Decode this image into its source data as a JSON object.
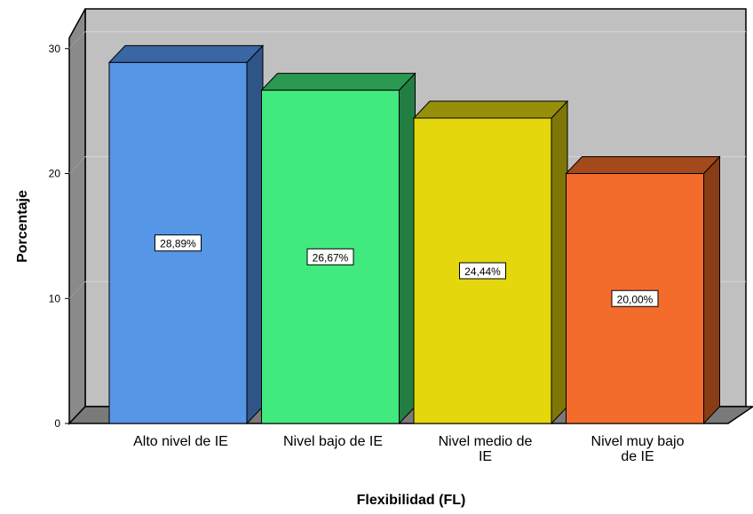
{
  "chart_data": {
    "type": "bar",
    "categories": [
      [
        "Alto nivel de IE"
      ],
      [
        "Nivel bajo de IE"
      ],
      [
        "Nivel medio de",
        "IE"
      ],
      [
        "Nivel muy bajo",
        "de IE"
      ]
    ],
    "values": [
      28.89,
      26.67,
      24.44,
      20.0
    ],
    "data_labels": [
      "28,89%",
      "26,67%",
      "24,44%",
      "20,00%"
    ],
    "xlabel": "Flexibilidad (FL)",
    "ylabel": "Porcentaje",
    "ylim": [
      0,
      30
    ],
    "yticks": [
      0,
      10,
      20,
      30
    ],
    "grid": true,
    "style": "3d",
    "colors": {
      "front": [
        "#5596e6",
        "#41e97e",
        "#e4d70d",
        "#f36c2c"
      ],
      "top": [
        "#3a66a4",
        "#2a9851",
        "#978f09",
        "#a4491c"
      ],
      "side": [
        "#2f5588",
        "#237e44",
        "#7e7707",
        "#883d17"
      ],
      "wall": "#c0c0c0",
      "floor": "#7a7a7a",
      "left_wall": "#8a8a8a"
    }
  }
}
